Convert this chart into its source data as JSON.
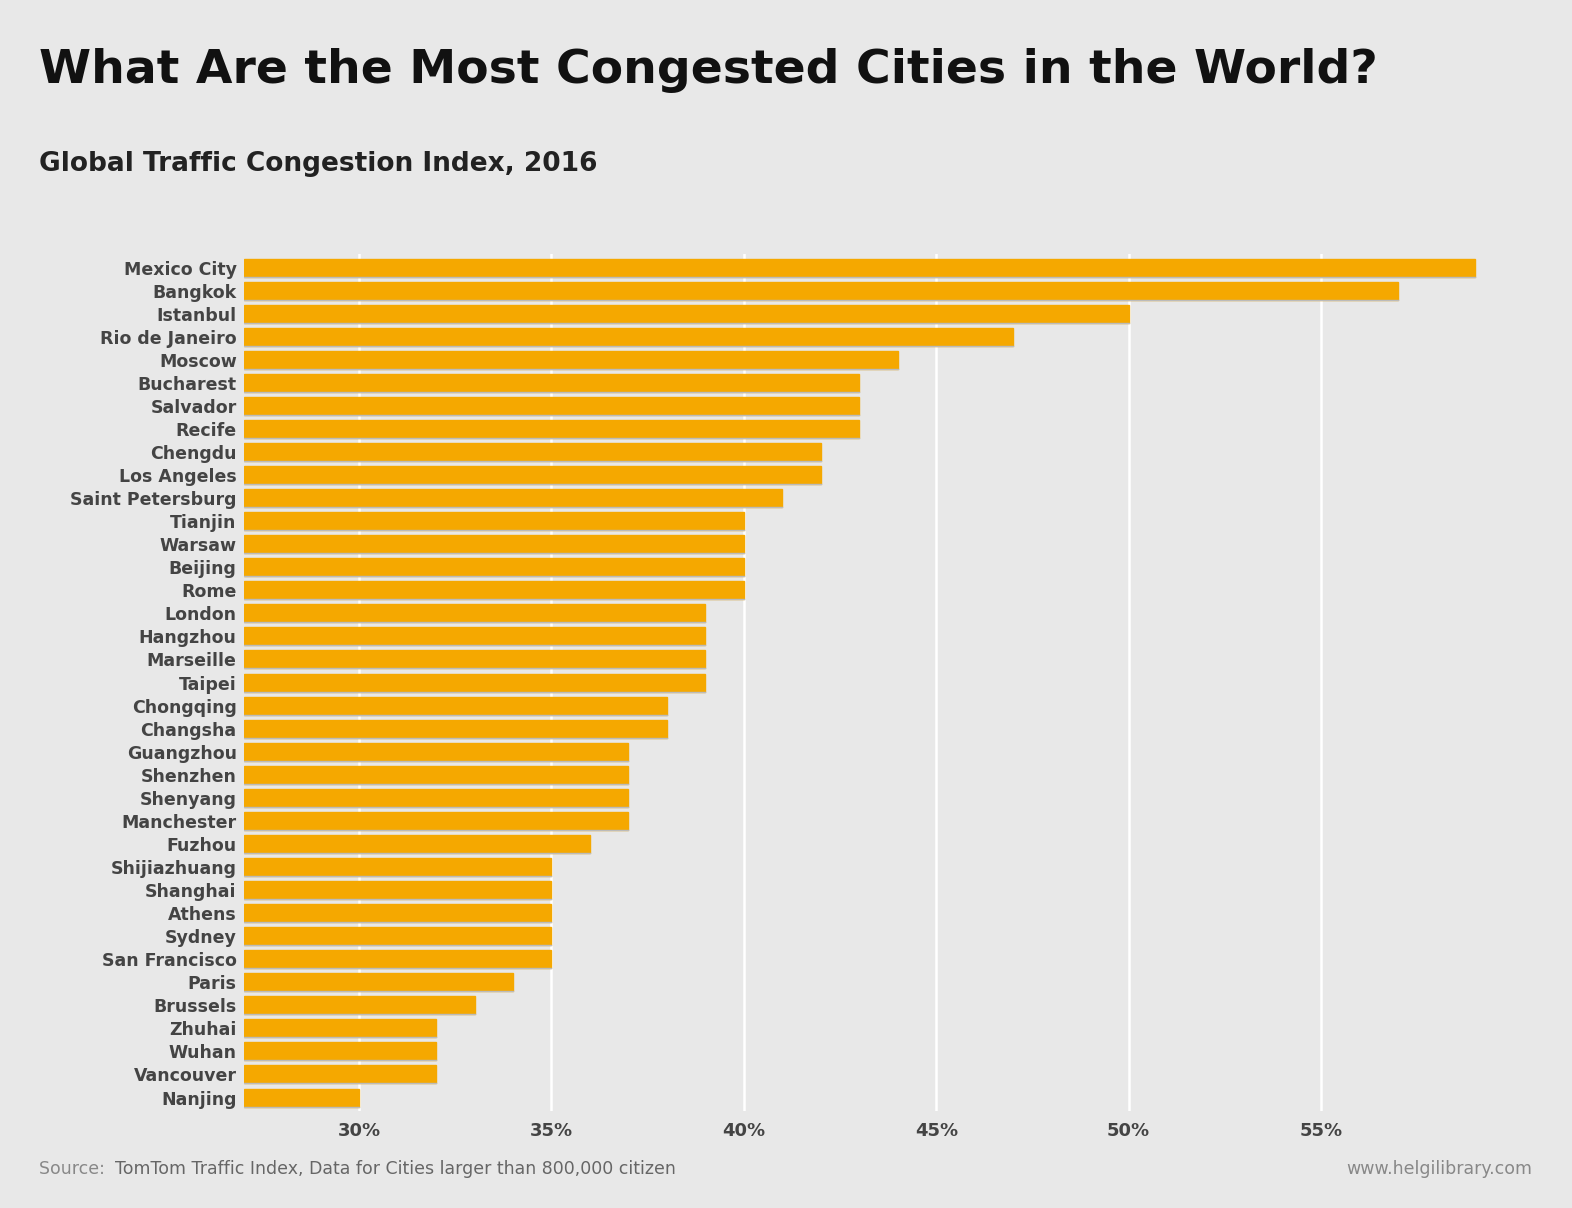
{
  "title": "What Are the Most Congested Cities in the World?",
  "subtitle": "Global Traffic Congestion Index, 2016",
  "source_label": "Source: ",
  "source_rest": "TomTom Traffic Index, Data for Cities larger than 800,000 citizen",
  "website_text": "www.helgilibrary.com",
  "cities": [
    "Mexico City",
    "Bangkok",
    "Istanbul",
    "Rio de Janeiro",
    "Moscow",
    "Bucharest",
    "Salvador",
    "Recife",
    "Chengdu",
    "Los Angeles",
    "Saint Petersburg",
    "Tianjin",
    "Warsaw",
    "Beijing",
    "Rome",
    "London",
    "Hangzhou",
    "Marseille",
    "Taipei",
    "Chongqing",
    "Changsha",
    "Guangzhou",
    "Shenzhen",
    "Shenyang",
    "Manchester",
    "Fuzhou",
    "Shijiazhuang",
    "Shanghai",
    "Athens",
    "Sydney",
    "San Francisco",
    "Paris",
    "Brussels",
    "Zhuhai",
    "Wuhan",
    "Vancouver",
    "Nanjing"
  ],
  "values": [
    0.59,
    0.57,
    0.5,
    0.47,
    0.44,
    0.43,
    0.43,
    0.43,
    0.42,
    0.42,
    0.41,
    0.4,
    0.4,
    0.4,
    0.4,
    0.39,
    0.39,
    0.39,
    0.39,
    0.38,
    0.38,
    0.37,
    0.37,
    0.37,
    0.37,
    0.36,
    0.35,
    0.35,
    0.35,
    0.35,
    0.35,
    0.34,
    0.33,
    0.32,
    0.32,
    0.32,
    0.3
  ],
  "bar_color_left": "#F5A800",
  "bar_color_right": "#D4880A",
  "bar_separator_color": "#BBBBBB",
  "background_color": "#E8E8E8",
  "plot_area_color": "#E0E0E0",
  "title_color": "#111111",
  "subtitle_color": "#222222",
  "tick_label_color": "#444444",
  "source_color": "#888888",
  "source_rest_color": "#666666",
  "xlim_min": 0.27,
  "xlim_max": 0.605,
  "xtick_values": [
    0.3,
    0.35,
    0.4,
    0.45,
    0.5,
    0.55
  ],
  "xtick_labels": [
    "30%",
    "35%",
    "40%",
    "45%",
    "50%",
    "55%"
  ],
  "bar_height": 0.78
}
